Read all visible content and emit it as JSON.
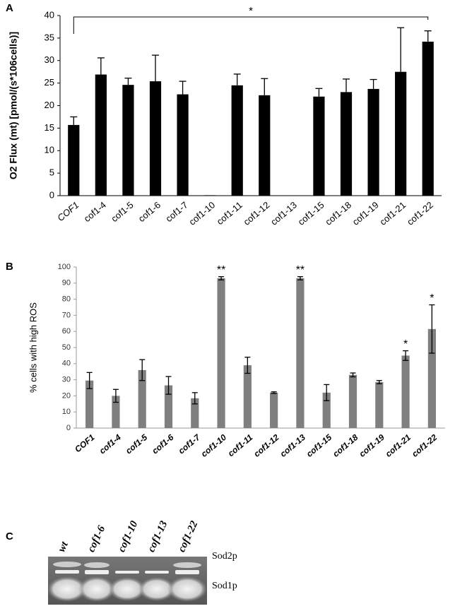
{
  "chart_data": [
    {
      "type": "bar",
      "panel_label": "A",
      "y_label": "O2 Flux (mt) [pmol/(s*106cells)]",
      "categories": [
        "COF1",
        "cof1-4",
        "cof1-5",
        "cof1-6",
        "cof1-7",
        "cof1-10",
        "cof1-11",
        "cof1-12",
        "cof1-13",
        "cof1-15",
        "cof1-18",
        "cof1-19",
        "cof1-21",
        "cof1-22"
      ],
      "values": [
        15.7,
        26.9,
        24.6,
        25.4,
        22.5,
        0.1,
        24.5,
        22.3,
        0,
        22.0,
        23.0,
        23.7,
        27.5,
        34.2
      ],
      "errors": [
        1.8,
        3.7,
        1.5,
        5.8,
        2.9,
        0,
        2.5,
        3.7,
        0,
        1.8,
        2.9,
        2.1,
        9.8,
        2.4
      ],
      "error_direction": "up",
      "color": "#000000",
      "ylim": [
        0,
        40
      ],
      "yticks": [
        0,
        5,
        10,
        15,
        20,
        25,
        30,
        35,
        40
      ],
      "bracket_text": "*"
    },
    {
      "type": "bar",
      "panel_label": "B",
      "y_label": "% cells with high ROS",
      "categories": [
        "COF1",
        "cof1-4",
        "cof1-5",
        "cof1-6",
        "cof1-7",
        "cof1-10",
        "cof1-11",
        "cof1-12",
        "cof1-13",
        "cof1-15",
        "cof1-18",
        "cof1-19",
        "cof1-21",
        "cof1-22"
      ],
      "values": [
        29.5,
        20,
        36,
        26.5,
        18.5,
        93,
        39,
        22,
        93,
        22,
        33,
        28.5,
        45,
        61.5
      ],
      "errors": [
        5,
        4,
        6.5,
        5.5,
        3.5,
        1,
        5,
        0.5,
        1,
        5,
        1.2,
        1,
        3,
        15
      ],
      "error_direction": "both",
      "color": "#7f7f7f",
      "ylim": [
        0,
        100
      ],
      "yticks": [
        0,
        10,
        20,
        30,
        40,
        50,
        60,
        70,
        80,
        90,
        100
      ],
      "significance": [
        null,
        null,
        null,
        null,
        null,
        "**",
        null,
        null,
        "**",
        null,
        null,
        null,
        "*",
        "*"
      ]
    }
  ],
  "gel": {
    "panel_label": "C",
    "lanes": [
      "wt",
      "cof1-6",
      "cof1-10",
      "cof1-13",
      "cof1-22"
    ],
    "bands": [
      "Sod2p",
      "Sod1p"
    ]
  }
}
